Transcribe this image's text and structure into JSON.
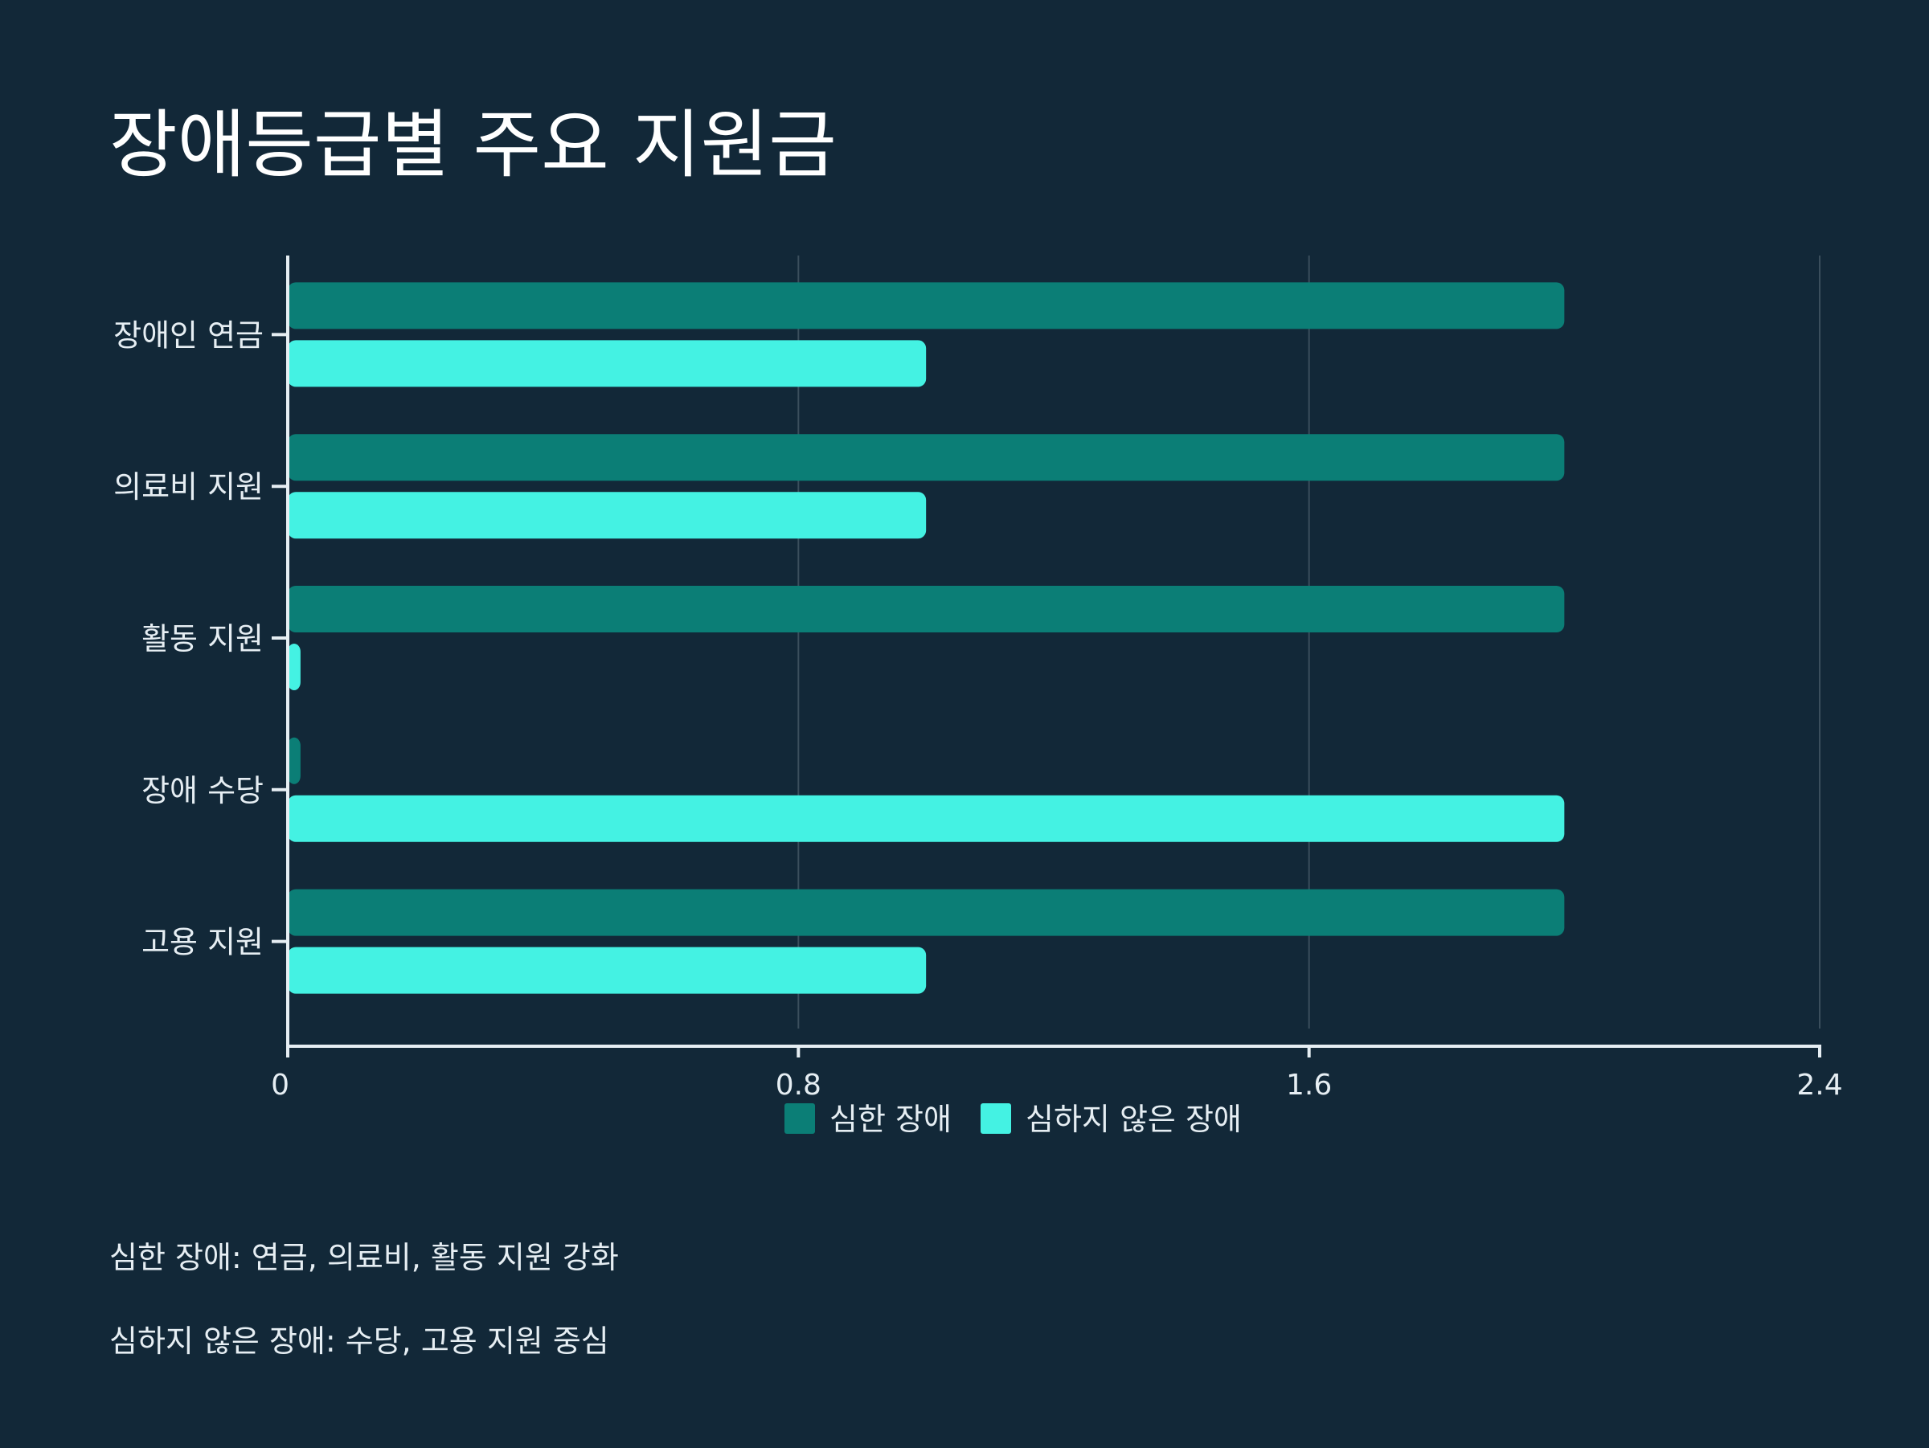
{
  "chart_data": {
    "type": "bar",
    "orientation": "horizontal",
    "title": "장애등급별 주요 지원금",
    "categories": [
      "장애인 연금",
      "의료비 지원",
      "활동 지원",
      "장애 수당",
      "고용 지원"
    ],
    "series": [
      {
        "name": "심한 장애",
        "values": [
          2,
          2,
          2,
          0.02,
          2
        ],
        "color": "#0b7e76"
      },
      {
        "name": "심하지 않은 장애",
        "values": [
          1,
          1,
          0.02,
          2,
          1
        ],
        "color": "#44f2e3"
      }
    ],
    "xlim": [
      0,
      2.4
    ],
    "xticks": [
      "0",
      "0.8",
      "1.6",
      "2.4"
    ],
    "xtick_values": [
      0,
      0.8,
      1.6,
      2.4
    ],
    "xlabel": "",
    "ylabel": "",
    "grid": "vertical",
    "legend_position": "bottom-center"
  },
  "notes": [
    "심한 장애: 연금, 의료비, 활동 지원 강화",
    "심하지 않은 장애: 수당, 고용 지원 중심"
  ],
  "colors": {
    "background": "#122838",
    "axis": "#e6eef3",
    "grid": "#3a4e5c"
  }
}
